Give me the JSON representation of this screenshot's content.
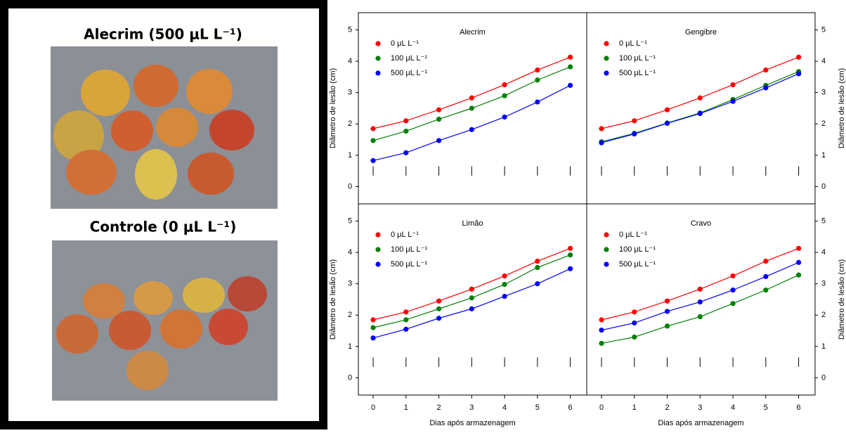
{
  "photos": {
    "labels": [
      "Alecrim (500 μL L⁻¹)",
      "Controle (0 μL L⁻¹)"
    ]
  },
  "chart_data": [
    {
      "type": "line",
      "title": "Alecrim",
      "y_label": "Diâmetro de lesão (cm)",
      "x": [
        0,
        1,
        2,
        3,
        4,
        5,
        6
      ],
      "xlim": [
        -0.45,
        6.5
      ],
      "xticks": [
        0,
        1,
        2,
        3,
        4,
        5,
        6
      ],
      "ylim": [
        -0.55,
        5.55
      ],
      "yticks": [
        0,
        1,
        2,
        3,
        4,
        5
      ],
      "series": [
        {
          "name": "0 μL L⁻¹",
          "color": "#ff0000",
          "values": [
            1.85,
            2.1,
            2.45,
            2.83,
            3.25,
            3.72,
            4.13
          ]
        },
        {
          "name": "100 μL L⁻¹",
          "color": "#008000",
          "values": [
            1.47,
            1.77,
            2.15,
            2.5,
            2.9,
            3.4,
            3.82
          ]
        },
        {
          "name": "500 μL L⁻¹",
          "color": "#0000ff",
          "values": [
            0.83,
            1.08,
            1.47,
            1.82,
            2.22,
            2.7,
            3.23
          ]
        }
      ]
    },
    {
      "type": "line",
      "title": "Gengibre",
      "y_label": "Diâmetro de lesão (cm)",
      "x": [
        0,
        1,
        2,
        3,
        4,
        5,
        6
      ],
      "xlim": [
        -0.45,
        6.5
      ],
      "xticks": [
        0,
        1,
        2,
        3,
        4,
        5,
        6
      ],
      "ylim": [
        -0.55,
        5.55
      ],
      "yticks": [
        0,
        1,
        2,
        3,
        4,
        5
      ],
      "series": [
        {
          "name": "0 μL L⁻¹",
          "color": "#ff0000",
          "values": [
            1.85,
            2.1,
            2.45,
            2.83,
            3.25,
            3.72,
            4.13
          ]
        },
        {
          "name": "100 μL L⁻¹",
          "color": "#008000",
          "values": [
            1.43,
            1.7,
            2.03,
            2.35,
            2.78,
            3.23,
            3.67
          ]
        },
        {
          "name": "500 μL L⁻¹",
          "color": "#0000ff",
          "values": [
            1.4,
            1.68,
            2.02,
            2.33,
            2.72,
            3.15,
            3.6
          ]
        }
      ]
    },
    {
      "type": "line",
      "title": "Limão",
      "y_label": "Diâmetro de lesão (cm)",
      "x_label": "Dias após armazenagem",
      "x": [
        0,
        1,
        2,
        3,
        4,
        5,
        6
      ],
      "xlim": [
        -0.45,
        6.5
      ],
      "xticks": [
        0,
        1,
        2,
        3,
        4,
        5,
        6
      ],
      "ylim": [
        -0.55,
        5.55
      ],
      "yticks": [
        0,
        1,
        2,
        3,
        4,
        5
      ],
      "series": [
        {
          "name": "0 μL L⁻¹",
          "color": "#ff0000",
          "values": [
            1.85,
            2.1,
            2.45,
            2.83,
            3.25,
            3.72,
            4.13
          ]
        },
        {
          "name": "100 μL L⁻¹",
          "color": "#008000",
          "values": [
            1.6,
            1.85,
            2.2,
            2.55,
            2.98,
            3.52,
            3.92
          ]
        },
        {
          "name": "500 μL L⁻¹",
          "color": "#0000ff",
          "values": [
            1.27,
            1.55,
            1.9,
            2.2,
            2.6,
            3.0,
            3.48
          ]
        }
      ]
    },
    {
      "type": "line",
      "title": "Cravo",
      "y_label": "Diâmetro de lesão (cm)",
      "x_label": "Dias após armazenagem",
      "x": [
        0,
        1,
        2,
        3,
        4,
        5,
        6
      ],
      "xlim": [
        -0.45,
        6.5
      ],
      "xticks": [
        0,
        1,
        2,
        3,
        4,
        5,
        6
      ],
      "ylim": [
        -0.55,
        5.55
      ],
      "yticks": [
        0,
        1,
        2,
        3,
        4,
        5
      ],
      "series": [
        {
          "name": "0 μL L⁻¹",
          "color": "#ff0000",
          "values": [
            1.85,
            2.1,
            2.45,
            2.83,
            3.25,
            3.72,
            4.13
          ]
        },
        {
          "name": "100 μL L⁻¹",
          "color": "#008000",
          "values": [
            1.1,
            1.3,
            1.65,
            1.95,
            2.37,
            2.8,
            3.28
          ]
        },
        {
          "name": "500 μL L⁻¹",
          "color": "#0000ff",
          "values": [
            1.52,
            1.75,
            2.12,
            2.42,
            2.8,
            3.23,
            3.68
          ]
        }
      ]
    }
  ]
}
